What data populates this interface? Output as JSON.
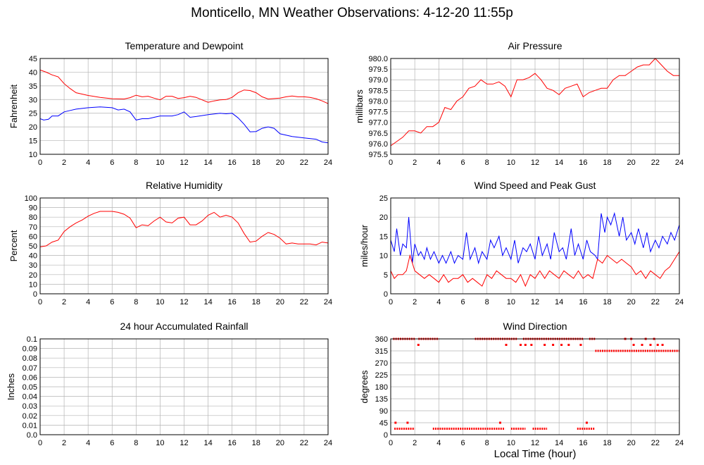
{
  "page": {
    "title": "Monticello, MN Weather Observations: 4-12-20 11:55p",
    "xaxis_label": "Local Time (hour)"
  },
  "colors": {
    "red": "#ff0000",
    "blue": "#0000ff",
    "grid": "#b4b4b4",
    "frame": "#000000",
    "rain": "#ff00ff"
  },
  "chart_data": [
    {
      "id": "temp",
      "type": "line",
      "title": "Temperature and Dewpoint",
      "ylabel": "Fahrenheit",
      "xlabel": "",
      "xlim": [
        0,
        24
      ],
      "ylim": [
        10,
        45
      ],
      "xticks": [
        0,
        2,
        4,
        6,
        8,
        10,
        12,
        14,
        16,
        18,
        20,
        22,
        24
      ],
      "yticks": [
        "10",
        "15",
        "20",
        "25",
        "30",
        "35",
        "40",
        "45"
      ],
      "grid": true,
      "series": [
        {
          "color": "red",
          "x": [
            0,
            0.5,
            1,
            1.5,
            2,
            2.5,
            3,
            4,
            5,
            6,
            7,
            7.5,
            8,
            8.5,
            9,
            9.5,
            10,
            10.5,
            11,
            11.5,
            12,
            12.5,
            13,
            14,
            14.5,
            15,
            15.5,
            16,
            16.5,
            17,
            17.5,
            18,
            18.5,
            19,
            20,
            20.5,
            21,
            21.5,
            22,
            22.5,
            23,
            23.5,
            24
          ],
          "y": [
            40.8,
            40,
            39,
            38.3,
            35.8,
            34,
            32.5,
            31.5,
            30.8,
            30.3,
            30.2,
            30.7,
            31.6,
            31,
            31.2,
            30.5,
            29.9,
            31.2,
            31.2,
            30.4,
            30.7,
            31.2,
            30.8,
            29,
            29.5,
            29.9,
            30,
            30.8,
            32.5,
            33.5,
            33.3,
            32.5,
            31,
            30.2,
            30.5,
            31,
            31.3,
            31,
            31,
            30.8,
            30.3,
            29.5,
            28.5
          ]
        },
        {
          "color": "blue",
          "x": [
            0,
            0.3,
            0.7,
            1,
            1.5,
            2,
            2.5,
            3,
            4,
            5,
            6,
            6.5,
            7,
            7.5,
            8,
            8.5,
            9,
            9.5,
            10,
            10.5,
            11,
            11.5,
            12,
            12.5,
            13,
            14,
            15,
            15.5,
            16,
            16.5,
            17,
            17.5,
            18,
            18.5,
            19,
            19.5,
            20,
            21,
            22,
            23,
            23.5,
            24
          ],
          "y": [
            23,
            22.5,
            22.8,
            24,
            24,
            25.5,
            26,
            26.5,
            27,
            27.3,
            27,
            26.2,
            26.5,
            25.5,
            22.5,
            23,
            23,
            23.5,
            24,
            24,
            24,
            24.5,
            25.5,
            23.5,
            23.8,
            24.5,
            25,
            24.8,
            25,
            23.3,
            21,
            18.2,
            18.3,
            19.5,
            20,
            19.5,
            17.5,
            16.5,
            16,
            15.5,
            14.5,
            14.2
          ]
        }
      ]
    },
    {
      "id": "pressure",
      "type": "line",
      "title": "Air Pressure",
      "ylabel": "millibars",
      "xlabel": "",
      "xlim": [
        0,
        24
      ],
      "ylim": [
        975.5,
        980
      ],
      "xticks": [
        0,
        2,
        4,
        6,
        8,
        10,
        12,
        14,
        16,
        18,
        20,
        22,
        24
      ],
      "yticks": [
        "975.5",
        "976.0",
        "976.5",
        "977.0",
        "977.5",
        "978.0",
        "978.5",
        "979.0",
        "979.5",
        "980.0"
      ],
      "grid": true,
      "series": [
        {
          "color": "red",
          "x": [
            0,
            0.5,
            1,
            1.5,
            2,
            2.5,
            3,
            3.5,
            4,
            4.5,
            5,
            5.5,
            6,
            6.5,
            7,
            7.5,
            8,
            8.5,
            9,
            9.5,
            10,
            10.5,
            11,
            11.5,
            12,
            12.5,
            13,
            13.5,
            14,
            14.5,
            15,
            15.5,
            16,
            16.5,
            17,
            17.5,
            18,
            18.5,
            19,
            19.5,
            20,
            20.5,
            21,
            21.5,
            22,
            22.5,
            23,
            23.5,
            24
          ],
          "y": [
            975.9,
            976.1,
            976.3,
            976.6,
            976.6,
            976.5,
            976.8,
            976.8,
            977.0,
            977.7,
            977.6,
            978.0,
            978.2,
            978.6,
            978.7,
            979.0,
            978.8,
            978.8,
            978.9,
            978.7,
            978.2,
            979.0,
            979.0,
            979.1,
            979.3,
            979.0,
            978.6,
            978.5,
            978.3,
            978.6,
            978.7,
            978.8,
            978.2,
            978.4,
            978.5,
            978.6,
            978.6,
            979.0,
            979.2,
            979.2,
            979.4,
            979.6,
            979.7,
            979.7,
            980.0,
            979.7,
            979.4,
            979.2,
            979.2
          ]
        }
      ]
    },
    {
      "id": "humidity",
      "type": "line",
      "title": "Relative Humidity",
      "ylabel": "Percent",
      "xlabel": "",
      "xlim": [
        0,
        24
      ],
      "ylim": [
        0,
        100
      ],
      "xticks": [
        0,
        2,
        4,
        6,
        8,
        10,
        12,
        14,
        16,
        18,
        20,
        22,
        24
      ],
      "yticks": [
        "0",
        "10",
        "20",
        "30",
        "40",
        "50",
        "60",
        "70",
        "80",
        "90",
        "100"
      ],
      "grid": true,
      "series": [
        {
          "color": "red",
          "x": [
            0,
            0.5,
            1,
            1.5,
            2,
            2.5,
            3,
            3.5,
            4,
            4.5,
            5,
            5.5,
            6,
            6.5,
            7,
            7.5,
            8,
            8.5,
            9,
            9.5,
            10,
            10.5,
            11,
            11.5,
            12,
            12.5,
            13,
            13.5,
            14,
            14.5,
            15,
            15.5,
            16,
            16.5,
            17,
            17.5,
            18,
            18.5,
            19,
            19.5,
            20,
            20.5,
            21,
            21.5,
            22,
            22.5,
            23,
            23.5,
            24
          ],
          "y": [
            49,
            50,
            54,
            56,
            65,
            70,
            74,
            77,
            81,
            84,
            86,
            86,
            86,
            85,
            83,
            79,
            69,
            72,
            71,
            76,
            80,
            75,
            74,
            79,
            80,
            72,
            72,
            76,
            82,
            85,
            80,
            82,
            80,
            74,
            63,
            54,
            55,
            60,
            64,
            62,
            58,
            52,
            53,
            52,
            52,
            52,
            51,
            54,
            53
          ]
        }
      ]
    },
    {
      "id": "wind",
      "type": "line",
      "title": "Wind Speed and Peak Gust",
      "ylabel": "miles/hour",
      "xlabel": "",
      "xlim": [
        0,
        24
      ],
      "ylim": [
        0,
        25
      ],
      "xticks": [
        0,
        2,
        4,
        6,
        8,
        10,
        12,
        14,
        16,
        18,
        20,
        22,
        24
      ],
      "yticks": [
        "0",
        "5",
        "10",
        "15",
        "20",
        "25"
      ],
      "grid": true,
      "series": [
        {
          "color": "blue",
          "x": [
            0,
            0.3,
            0.5,
            0.8,
            1,
            1.3,
            1.5,
            1.8,
            2,
            2.3,
            2.5,
            2.8,
            3,
            3.3,
            3.6,
            4,
            4.3,
            4.6,
            5,
            5.3,
            5.6,
            6,
            6.3,
            6.6,
            7,
            7.3,
            7.6,
            8,
            8.3,
            8.6,
            9,
            9.3,
            9.6,
            10,
            10.3,
            10.6,
            11,
            11.3,
            11.6,
            12,
            12.3,
            12.6,
            13,
            13.3,
            13.6,
            14,
            14.3,
            14.6,
            15,
            15.3,
            15.6,
            16,
            16.3,
            16.6,
            17,
            17.2,
            17.5,
            17.8,
            18,
            18.3,
            18.6,
            19,
            19.3,
            19.6,
            20,
            20.3,
            20.6,
            21,
            21.3,
            21.6,
            22,
            22.3,
            22.6,
            23,
            23.3,
            23.6,
            24
          ],
          "y": [
            14,
            11,
            17,
            10,
            13,
            12,
            20,
            8,
            13,
            10,
            11,
            9,
            12,
            9,
            11,
            8,
            10,
            8,
            11,
            8,
            10,
            9,
            16,
            9,
            12,
            8,
            11,
            9,
            14,
            12,
            15,
            10,
            12,
            9,
            14,
            8,
            12,
            11,
            13,
            9,
            15,
            10,
            13,
            9,
            16,
            11,
            12,
            9,
            17,
            10,
            13,
            9,
            14,
            11,
            10,
            9,
            21,
            16,
            20,
            18,
            21,
            15,
            20,
            14,
            16,
            13,
            17,
            12,
            16,
            11,
            14,
            12,
            15,
            13,
            16,
            14,
            18
          ]
        },
        {
          "color": "red",
          "x": [
            0,
            0.3,
            0.6,
            1,
            1.3,
            1.6,
            2,
            2.4,
            2.8,
            3.2,
            3.6,
            4,
            4.4,
            4.8,
            5.2,
            5.6,
            6,
            6.4,
            6.8,
            7.2,
            7.6,
            8,
            8.4,
            8.8,
            9.2,
            9.6,
            10,
            10.4,
            10.8,
            11.2,
            11.6,
            12,
            12.4,
            12.8,
            13.2,
            13.6,
            14,
            14.4,
            14.8,
            15.2,
            15.6,
            16,
            16.4,
            16.8,
            17.2,
            17.6,
            18,
            18.4,
            18.8,
            19.2,
            19.6,
            20,
            20.4,
            20.8,
            21.2,
            21.6,
            22,
            22.4,
            22.8,
            23.2,
            23.6,
            24
          ],
          "y": [
            6,
            4,
            5,
            5,
            6,
            10,
            6,
            5,
            4,
            5,
            4,
            3,
            5,
            3,
            4,
            4,
            5,
            3,
            4,
            3,
            2,
            5,
            4,
            6,
            5,
            4,
            4,
            3,
            5,
            2,
            5,
            4,
            6,
            4,
            6,
            5,
            4,
            6,
            5,
            4,
            6,
            4,
            5,
            4,
            9,
            8,
            10,
            9,
            8,
            9,
            8,
            7,
            5,
            6,
            4,
            6,
            5,
            4,
            6,
            7,
            9,
            11
          ]
        }
      ]
    },
    {
      "id": "rain",
      "type": "line",
      "title": "24 hour Accumulated Rainfall",
      "ylabel": "Inches",
      "xlabel": "",
      "xlim": [
        0,
        24
      ],
      "ylim": [
        0,
        0.1
      ],
      "xticks": [
        0,
        2,
        4,
        6,
        8,
        10,
        12,
        14,
        16,
        18,
        20,
        22,
        24
      ],
      "yticks": [
        "0.0",
        "0.01",
        "0.02",
        "0.03",
        "0.04",
        "0.05",
        "0.06",
        "0.07",
        "0.08",
        "0.09",
        "0.1"
      ],
      "grid": true,
      "series": [
        {
          "color": "rain",
          "x": [
            0,
            24
          ],
          "y": [
            0,
            0
          ]
        }
      ]
    },
    {
      "id": "direction",
      "type": "scatter",
      "title": "Wind Direction",
      "ylabel": "degrees",
      "xlabel": "Local Time (hour)",
      "xlim": [
        0,
        24
      ],
      "ylim": [
        0,
        360
      ],
      "xticks": [
        0,
        2,
        4,
        6,
        8,
        10,
        12,
        14,
        16,
        18,
        20,
        22,
        24
      ],
      "yticks": [
        "0",
        "45",
        "90",
        "135",
        "180",
        "225",
        "270",
        "315",
        "360"
      ],
      "grid": true,
      "segments": [
        {
          "x0": 0.2,
          "x1": 2.0,
          "y": 360
        },
        {
          "x0": 2.3,
          "x1": 4.0,
          "y": 360
        },
        {
          "x0": 7.0,
          "x1": 10.5,
          "y": 360
        },
        {
          "x0": 11.0,
          "x1": 16.0,
          "y": 360
        },
        {
          "x0": 16.5,
          "x1": 17.0,
          "y": 360
        },
        {
          "x0": 0.3,
          "x1": 2.0,
          "y": 22.5
        },
        {
          "x0": 3.5,
          "x1": 9.5,
          "y": 22.5
        },
        {
          "x0": 10.0,
          "x1": 11.2,
          "y": 22.5
        },
        {
          "x0": 11.8,
          "x1": 13.0,
          "y": 22.5
        },
        {
          "x0": 15.5,
          "x1": 17.0,
          "y": 22.5
        },
        {
          "x0": 17.0,
          "x1": 24.0,
          "y": 315
        }
      ],
      "points": [
        {
          "x": 2.3,
          "y": 337.5
        },
        {
          "x": 9.6,
          "y": 337.5
        },
        {
          "x": 10.8,
          "y": 337.5
        },
        {
          "x": 11.2,
          "y": 337.5
        },
        {
          "x": 11.7,
          "y": 337.5
        },
        {
          "x": 12.8,
          "y": 337.5
        },
        {
          "x": 13.5,
          "x2": 0,
          "y": 337.5
        },
        {
          "x": 14.2,
          "y": 337.5
        },
        {
          "x": 14.8,
          "y": 337.5
        },
        {
          "x": 15.8,
          "y": 337.5
        },
        {
          "x": 20.2,
          "y": 337.5
        },
        {
          "x": 20.9,
          "y": 337.5
        },
        {
          "x": 21.6,
          "y": 337.5
        },
        {
          "x": 22.2,
          "y": 337.5
        },
        {
          "x": 22.6,
          "y": 337.5
        },
        {
          "x": 0.4,
          "y": 45
        },
        {
          "x": 1.4,
          "y": 45
        },
        {
          "x": 9.1,
          "y": 45
        },
        {
          "x": 16.3,
          "y": 45
        },
        {
          "x": 19.5,
          "y": 360
        },
        {
          "x": 20.0,
          "y": 360
        },
        {
          "x": 21.2,
          "y": 360
        },
        {
          "x": 21.9,
          "y": 360
        }
      ]
    }
  ]
}
